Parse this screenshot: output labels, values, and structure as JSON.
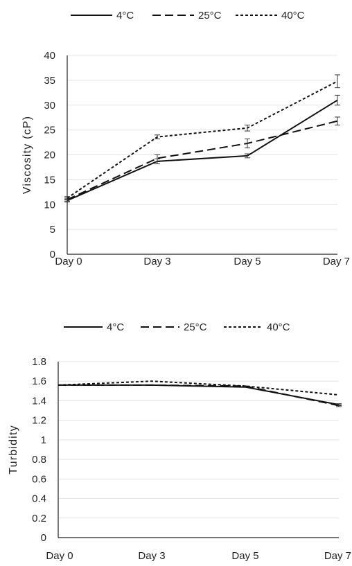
{
  "chart_data": [
    {
      "type": "line",
      "categories": [
        "Day 0",
        "Day 3",
        "Day 5",
        "Day 7"
      ],
      "ylabel": "Viscosity (cP)",
      "ylim": [
        0,
        40
      ],
      "yticks": [
        "0",
        "5",
        "10",
        "15",
        "20",
        "25",
        "30",
        "35",
        "40"
      ],
      "grid": true,
      "legend_position": "top",
      "error_bars": true,
      "series": [
        {
          "name": "4°C",
          "dash": "solid",
          "values": [
            10.8,
            18.7,
            19.8,
            31.0
          ],
          "errors": [
            0.3,
            0.5,
            0.4,
            1.0
          ]
        },
        {
          "name": "25°C",
          "dash": "dash",
          "values": [
            11.0,
            19.3,
            22.3,
            26.8
          ],
          "errors": [
            0.3,
            0.7,
            0.9,
            0.8
          ]
        },
        {
          "name": "40°C",
          "dash": "dot",
          "values": [
            11.3,
            23.6,
            25.4,
            34.8
          ],
          "errors": [
            0.3,
            0.4,
            0.6,
            1.3
          ]
        }
      ]
    },
    {
      "type": "line",
      "categories": [
        "Day 0",
        "Day 3",
        "Day 5",
        "Day 7"
      ],
      "ylabel": "Turbidity",
      "ylim": [
        0,
        1.8
      ],
      "yticks": [
        "0",
        "0.2",
        "0.4",
        "0.6",
        "0.8",
        "1",
        "1.2",
        "1.4",
        "1.6",
        "1.8"
      ],
      "grid": true,
      "legend_position": "top",
      "error_bars": true,
      "series": [
        {
          "name": "4°C",
          "dash": "solid",
          "values": [
            1.56,
            1.56,
            1.54,
            1.36
          ],
          "errors": [
            0.0,
            0.0,
            0.0,
            0.01
          ]
        },
        {
          "name": "25°C",
          "dash": "dash",
          "values": [
            1.56,
            1.56,
            1.55,
            1.35
          ],
          "errors": [
            0.0,
            0.0,
            0.0,
            0.01
          ]
        },
        {
          "name": "40°C",
          "dash": "dot",
          "values": [
            1.56,
            1.6,
            1.55,
            1.46
          ],
          "errors": [
            0.0,
            0.0,
            0.0,
            0.0
          ]
        }
      ]
    }
  ]
}
